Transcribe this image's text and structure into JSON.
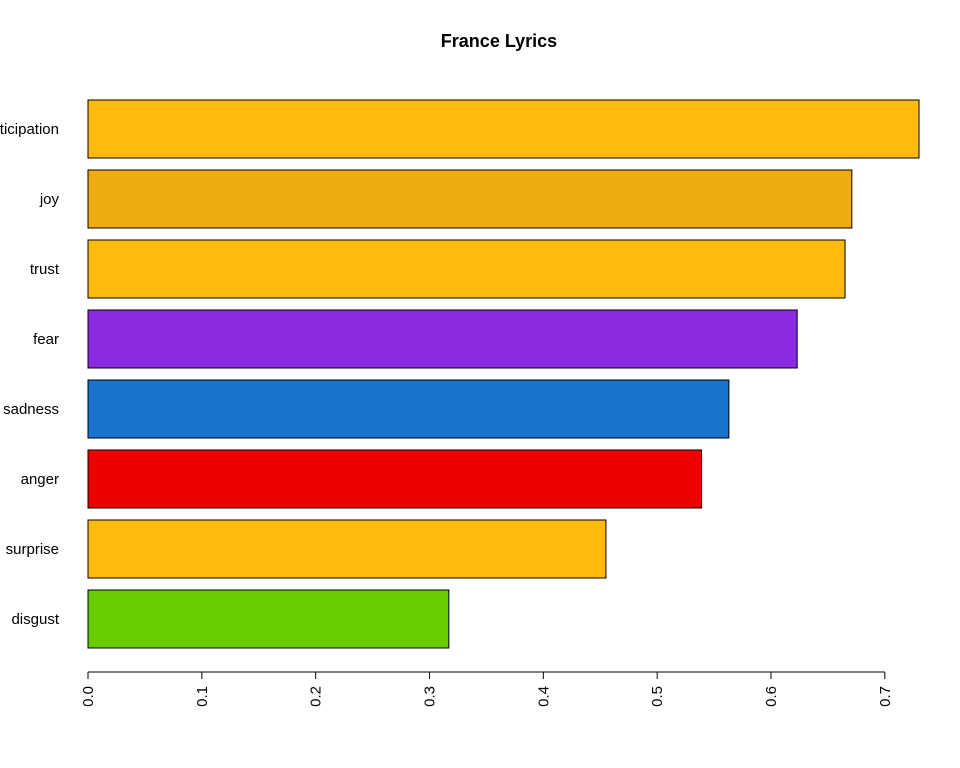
{
  "chart_data": {
    "type": "bar",
    "orientation": "horizontal",
    "title": "France Lyrics",
    "xlabel": "",
    "ylabel": "",
    "categories": [
      "anticipation",
      "joy",
      "trust",
      "fear",
      "sadness",
      "anger",
      "surprise",
      "disgust"
    ],
    "values": [
      0.73,
      0.671,
      0.665,
      0.623,
      0.563,
      0.539,
      0.455,
      0.317
    ],
    "colors": [
      "#FFB90F",
      "#EEAD0E",
      "#FFB90F",
      "#8A2BE2",
      "#1874CD",
      "#EE0000",
      "#FFB90F",
      "#66CD00"
    ],
    "xlim": [
      0,
      0.73
    ],
    "xticks": [
      "0.0",
      "0.1",
      "0.2",
      "0.3",
      "0.4",
      "0.5",
      "0.6",
      "0.7"
    ],
    "grid": false,
    "legend": "none"
  }
}
